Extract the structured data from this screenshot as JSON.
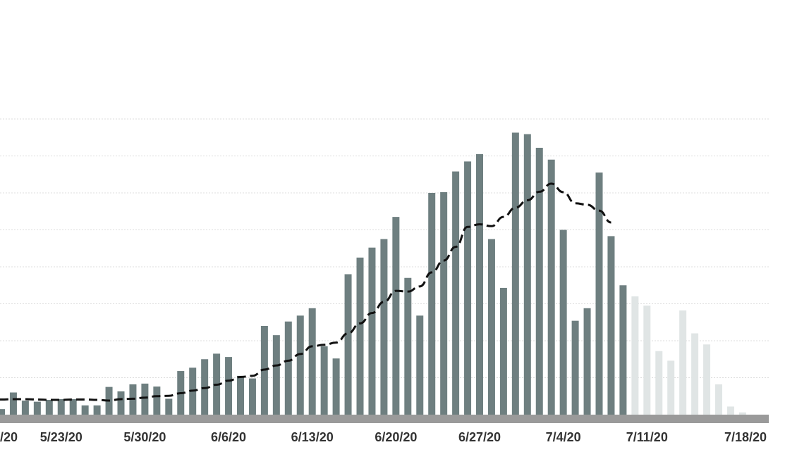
{
  "chart_data": {
    "type": "bar",
    "x_tick_labels": [
      "5/23/20",
      "5/30/20",
      "6/6/20",
      "6/13/20",
      "6/20/20",
      "6/27/20",
      "7/4/20",
      "7/11/20",
      "7/18/20"
    ],
    "x_tick_indices": [
      5,
      12,
      19,
      26,
      33,
      40,
      47,
      54,
      61
    ],
    "y_range": [
      0,
      8
    ],
    "grid": "horizontal dashed",
    "partial_left_label": "/20",
    "series": [
      {
        "kind": "bar",
        "values": [
          0.15,
          0.6,
          0.38,
          0.35,
          0.4,
          0.42,
          0.42,
          0.25,
          0.25,
          0.75,
          0.63,
          0.82,
          0.84,
          0.76,
          0.43,
          1.18,
          1.27,
          1.5,
          1.65,
          1.56,
          1.05,
          0.98,
          2.4,
          2.15,
          2.52,
          2.68,
          2.88,
          1.85,
          1.52,
          3.8,
          4.25,
          4.52,
          4.75,
          5.35,
          3.7,
          2.68,
          6.0,
          6.02,
          6.58,
          6.85,
          7.05,
          4.75,
          3.43,
          7.63,
          7.59,
          7.22,
          6.9,
          5.0,
          2.54,
          2.88,
          6.55,
          4.83,
          3.5
        ],
        "colors": {
          "reported": "#6e7f80",
          "incomplete": "#e0e5e5"
        },
        "note_indices": "first 53 bars reported; last 10 bars incomplete"
      },
      {
        "kind": "bar-incomplete",
        "values": [
          3.2,
          2.95,
          1.72,
          1.46,
          2.82,
          2.2,
          1.9,
          0.82,
          0.22,
          0.06
        ]
      },
      {
        "kind": "line",
        "style": "dashed",
        "color": "#111111",
        "values": [
          0.41,
          0.42,
          0.42,
          0.41,
          0.4,
          0.4,
          0.41,
          0.41,
          0.4,
          0.38,
          0.42,
          0.43,
          0.46,
          0.5,
          0.51,
          0.58,
          0.65,
          0.72,
          0.81,
          0.92,
          1.02,
          1.05,
          1.22,
          1.33,
          1.46,
          1.64,
          1.85,
          1.89,
          1.95,
          2.2,
          2.47,
          2.75,
          3.05,
          3.35,
          3.33,
          3.47,
          3.85,
          4.17,
          4.54,
          5.08,
          5.15,
          5.1,
          5.35,
          5.6,
          5.8,
          6.03,
          6.25,
          6.02,
          5.72,
          5.68,
          5.52,
          5.2
        ]
      }
    ]
  }
}
